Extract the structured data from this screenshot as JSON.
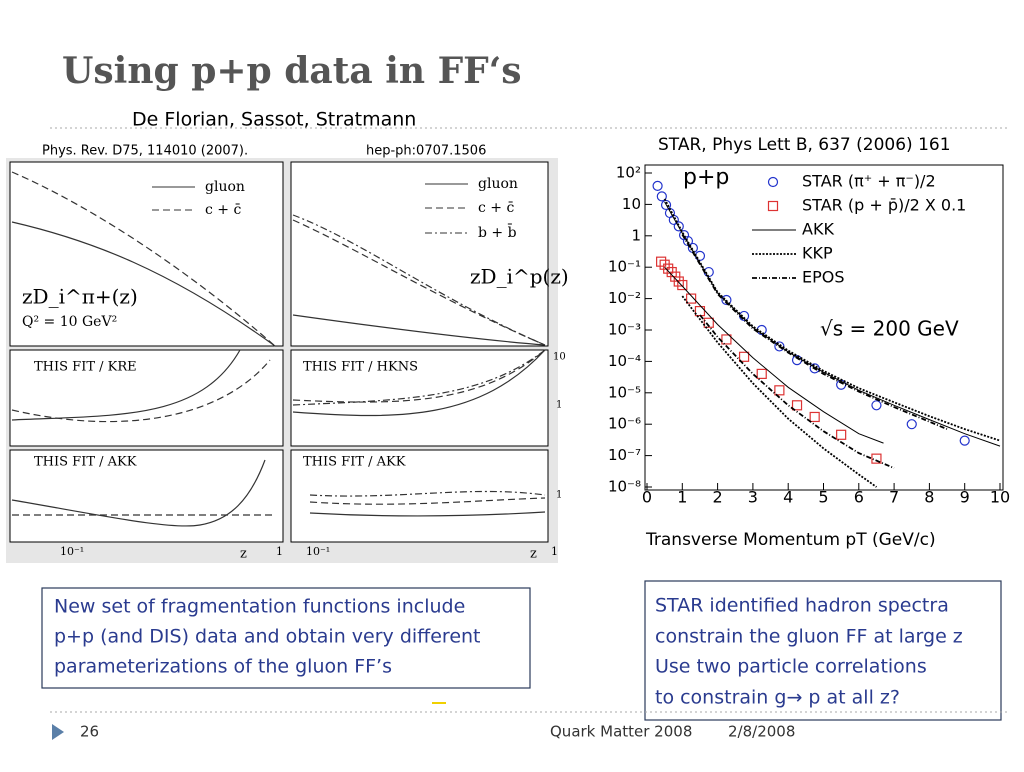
{
  "header": {
    "title": "Using p+p data in FF‘s"
  },
  "left_figure": {
    "authors": "De Florian, Sassot, Stratmann",
    "reference": "Phys. Rev.  D75, 114010 (2007).",
    "preprint": "hep-ph:0707.1506",
    "legend": [
      "gluon",
      "c + c̄",
      "b + b̄"
    ],
    "panel_labels": [
      "zD_i^π+(z)",
      "Q² = 10 GeV²",
      "zD_i^p(z)"
    ],
    "ratio_labels": [
      "THIS FIT / KRE",
      "THIS FIT / HKNS",
      "THIS FIT / AKK"
    ],
    "x_labels": [
      "10⁻¹",
      "z",
      "1"
    ],
    "y_labels": [
      "10",
      "1"
    ]
  },
  "right_figure_reference": "STAR, Phys Lett B, 637 (2006) 161",
  "chart_data": {
    "type": "scatter",
    "title": "p+p",
    "annotation": "√s = 200 GeV",
    "xlabel": "Transverse Momentum pT (GeV/c)",
    "xlim": [
      0,
      10
    ],
    "xticks": [
      0,
      1,
      2,
      3,
      4,
      5,
      6,
      7,
      8,
      9,
      10
    ],
    "ylim": [
      1e-08,
      100
    ],
    "log_y": true,
    "yticks": [
      {
        "value": 1e-08,
        "label": "10⁻⁸"
      },
      {
        "value": 1e-07,
        "label": "10⁻⁷"
      },
      {
        "value": 1e-06,
        "label": "10⁻⁶"
      },
      {
        "value": 1e-05,
        "label": "10⁻⁵"
      },
      {
        "value": 0.0001,
        "label": "10⁻⁴"
      },
      {
        "value": 0.001,
        "label": "10⁻³"
      },
      {
        "value": 0.01,
        "label": "10⁻²"
      },
      {
        "value": 0.1,
        "label": "10⁻¹"
      },
      1,
      10,
      {
        "value": 100,
        "label": "10²"
      }
    ],
    "series": [
      {
        "name": "STAR (π⁺ + π⁻)/2",
        "marker": "circle",
        "color": "#2233cc",
        "x": [
          0.3,
          0.42,
          0.54,
          0.65,
          0.76,
          0.9,
          1.05,
          1.16,
          1.3,
          1.5,
          1.75,
          2.25,
          2.75,
          3.25,
          3.75,
          4.25,
          4.75,
          5.5,
          6.5,
          7.5,
          9.0
        ],
        "values": [
          39,
          18,
          9.6,
          5.3,
          3.2,
          2,
          1.05,
          0.68,
          0.41,
          0.23,
          0.07,
          0.009,
          0.0028,
          0.001,
          0.0003,
          0.00011,
          6e-05,
          1.8e-05,
          4e-06,
          1e-06,
          3e-07
        ]
      },
      {
        "name": "STAR (p + p̄)/2 X 0.1",
        "marker": "square",
        "color": "#dd3333",
        "x": [
          0.4,
          0.5,
          0.6,
          0.7,
          0.8,
          0.9,
          1.0,
          1.25,
          1.5,
          1.75,
          2.25,
          2.75,
          3.25,
          3.75,
          4.25,
          4.75,
          5.5,
          6.5
        ],
        "values": [
          0.15,
          0.12,
          0.09,
          0.07,
          0.05,
          0.035,
          0.027,
          0.01,
          0.004,
          0.0017,
          0.0005,
          0.00014,
          4e-05,
          1.2e-05,
          4e-06,
          1.7e-06,
          4.6e-07,
          8e-08
        ]
      },
      {
        "name": "AKK",
        "style": "solid",
        "color": "#000000",
        "x": [
          0.5,
          1,
          2,
          3,
          4,
          5,
          6,
          7,
          8,
          9,
          10,
          null,
          0.5,
          1,
          2,
          3,
          4,
          5,
          6,
          6.7
        ],
        "values": [
          12,
          1.2,
          0.015,
          0.0012,
          0.0002,
          4.5e-05,
          1.2e-05,
          4e-06,
          1.4e-06,
          5e-07,
          2e-07,
          null,
          0.1,
          0.025,
          0.0015,
          0.00013,
          1.5e-05,
          2.5e-06,
          5e-07,
          2.5e-07
        ]
      },
      {
        "name": "KKP",
        "style": "dotted",
        "color": "#000000",
        "x": [
          0.5,
          1,
          2,
          3,
          4,
          5,
          6,
          7,
          8,
          9,
          10,
          null,
          1,
          2,
          3,
          4,
          5,
          6,
          6.5
        ],
        "values": [
          15,
          1.3,
          0.016,
          0.0013,
          0.00022,
          5e-05,
          1.4e-05,
          5e-06,
          1.8e-06,
          7e-07,
          3e-07,
          null,
          0.012,
          0.0004,
          2e-05,
          1.5e-06,
          1.7e-07,
          2.5e-08,
          1e-08
        ]
      },
      {
        "name": "EPOS",
        "style": "dashdot",
        "color": "#000000",
        "x": [
          1,
          2,
          3,
          4,
          5,
          6,
          7,
          8,
          8.5,
          null,
          1.5,
          2,
          3,
          4,
          5,
          6,
          7
        ],
        "values": [
          1.1,
          0.014,
          0.0011,
          0.00019,
          4e-05,
          1.1e-05,
          3.5e-06,
          1.2e-06,
          7e-07,
          null,
          0.003,
          0.0006,
          4e-05,
          4e-06,
          6e-07,
          1.2e-07,
          4e-08
        ]
      }
    ]
  },
  "left_box": [
    "New set of fragmentation functions include",
    "p+p (and DIS) data and obtain very different",
    "parameterizations of the gluon FF’s"
  ],
  "right_box": [
    "STAR identified hadron spectra",
    "constrain the gluon FF at large z",
    "Use two particle correlations",
    "to constrain g→ p at all z?"
  ],
  "footer": {
    "page": "26",
    "event": "Quark Matter 2008",
    "date": "2/8/2008"
  }
}
